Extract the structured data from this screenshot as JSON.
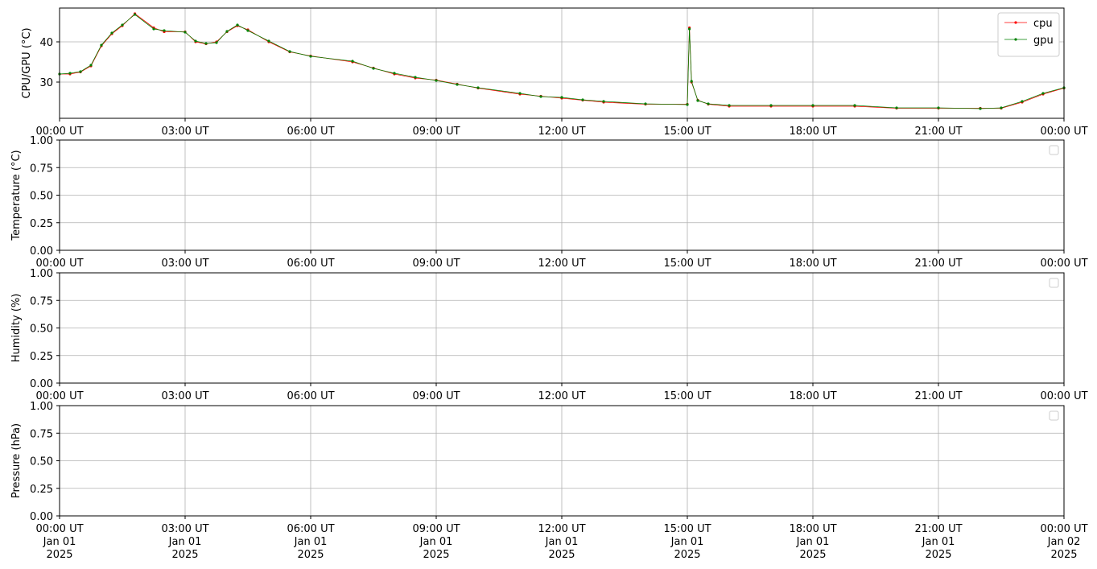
{
  "chart_data": [
    {
      "type": "line",
      "ylabel": "CPU/GPU (°C)",
      "xlim": [
        0,
        24
      ],
      "ylim": [
        21,
        48.4
      ],
      "grid": true,
      "legend": "upper right",
      "xticks": [
        {
          "value": 0,
          "label": "00:00 UT"
        },
        {
          "value": 3,
          "label": "03:00 UT"
        },
        {
          "value": 6,
          "label": "06:00 UT"
        },
        {
          "value": 9,
          "label": "09:00 UT"
        },
        {
          "value": 12,
          "label": "12:00 UT"
        },
        {
          "value": 15,
          "label": "15:00 UT"
        },
        {
          "value": 18,
          "label": "18:00 UT"
        },
        {
          "value": 21,
          "label": "21:00 UT"
        },
        {
          "value": 24,
          "label": "00:00 UT"
        }
      ],
      "yticks": [
        30,
        40
      ],
      "x": [
        0,
        0.25,
        0.5,
        0.75,
        1,
        1.25,
        1.5,
        1.8,
        2.25,
        2.5,
        3,
        3.25,
        3.5,
        3.75,
        4,
        4.25,
        4.5,
        5,
        5.5,
        6,
        7,
        7.5,
        8,
        8.5,
        9,
        9.5,
        10,
        11,
        11.5,
        12,
        12.5,
        13,
        14,
        15,
        15.05,
        15.1,
        15.25,
        15.5,
        16,
        17,
        18,
        19,
        20,
        21,
        22,
        22.5,
        23,
        23.5,
        24
      ],
      "series": [
        {
          "name": "cpu",
          "color": "#ff0000",
          "values": [
            32,
            32,
            32.5,
            34,
            39,
            42,
            44,
            47,
            43.5,
            42.5,
            42.5,
            40,
            39.5,
            40,
            42.5,
            44,
            43,
            40,
            37.5,
            36.5,
            35,
            33.5,
            32,
            31,
            30.5,
            29.5,
            28.5,
            27,
            26.5,
            26,
            25.5,
            25,
            24.5,
            24.5,
            43.5,
            30,
            25.5,
            24.5,
            24,
            24,
            24,
            24,
            23.5,
            23.5,
            23.5,
            23.5,
            25,
            27,
            28.5
          ]
        },
        {
          "name": "gpu",
          "color": "#008000",
          "values": [
            32,
            32.2,
            32.6,
            34.2,
            39.2,
            42.2,
            44.2,
            46.8,
            43.2,
            42.8,
            42.4,
            40.2,
            39.6,
            39.8,
            42.6,
            44.2,
            42.8,
            40.2,
            37.6,
            36.4,
            35.2,
            33.4,
            32.2,
            31.2,
            30.4,
            29.4,
            28.6,
            27.2,
            26.4,
            26.2,
            25.6,
            25.2,
            24.6,
            24.4,
            43.2,
            30.2,
            25.4,
            24.6,
            24.2,
            24.2,
            24.2,
            24.2,
            23.6,
            23.6,
            23.4,
            23.6,
            25.2,
            27.2,
            28.6
          ]
        }
      ]
    },
    {
      "type": "line",
      "ylabel": "Temperature (°C)",
      "xlim": [
        0,
        24
      ],
      "ylim": [
        0,
        1
      ],
      "grid": true,
      "xticks": [
        {
          "value": 0,
          "label": "00:00 UT"
        },
        {
          "value": 3,
          "label": "03:00 UT"
        },
        {
          "value": 6,
          "label": "06:00 UT"
        },
        {
          "value": 9,
          "label": "09:00 UT"
        },
        {
          "value": 12,
          "label": "12:00 UT"
        },
        {
          "value": 15,
          "label": "15:00 UT"
        },
        {
          "value": 18,
          "label": "18:00 UT"
        },
        {
          "value": 21,
          "label": "21:00 UT"
        },
        {
          "value": 24,
          "label": "00:00 UT"
        }
      ],
      "yticks": [
        {
          "value": 0,
          "label": "0.00"
        },
        {
          "value": 0.25,
          "label": "0.25"
        },
        {
          "value": 0.5,
          "label": "0.50"
        },
        {
          "value": 0.75,
          "label": "0.75"
        },
        {
          "value": 1,
          "label": "1.00"
        }
      ]
    },
    {
      "type": "line",
      "ylabel": "Humidity (%)",
      "xlim": [
        0,
        24
      ],
      "ylim": [
        0,
        1
      ],
      "grid": true,
      "xticks": [
        {
          "value": 0,
          "label": "00:00 UT"
        },
        {
          "value": 3,
          "label": "03:00 UT"
        },
        {
          "value": 6,
          "label": "06:00 UT"
        },
        {
          "value": 9,
          "label": "09:00 UT"
        },
        {
          "value": 12,
          "label": "12:00 UT"
        },
        {
          "value": 15,
          "label": "15:00 UT"
        },
        {
          "value": 18,
          "label": "18:00 UT"
        },
        {
          "value": 21,
          "label": "21:00 UT"
        },
        {
          "value": 24,
          "label": "00:00 UT"
        }
      ],
      "yticks": [
        {
          "value": 0,
          "label": "0.00"
        },
        {
          "value": 0.25,
          "label": "0.25"
        },
        {
          "value": 0.5,
          "label": "0.50"
        },
        {
          "value": 0.75,
          "label": "0.75"
        },
        {
          "value": 1,
          "label": "1.00"
        }
      ]
    },
    {
      "type": "line",
      "ylabel": "Pressure (hPa)",
      "xlim": [
        0,
        24
      ],
      "ylim": [
        0,
        1
      ],
      "grid": true,
      "xticks": [
        {
          "value": 0,
          "label": "00:00 UT\nJan 01\n2025"
        },
        {
          "value": 3,
          "label": "03:00 UT\nJan 01\n2025"
        },
        {
          "value": 6,
          "label": "06:00 UT\nJan 01\n2025"
        },
        {
          "value": 9,
          "label": "09:00 UT\nJan 01\n2025"
        },
        {
          "value": 12,
          "label": "12:00 UT\nJan 01\n2025"
        },
        {
          "value": 15,
          "label": "15:00 UT\nJan 01\n2025"
        },
        {
          "value": 18,
          "label": "18:00 UT\nJan 01\n2025"
        },
        {
          "value": 21,
          "label": "21:00 UT\nJan 01\n2025"
        },
        {
          "value": 24,
          "label": "00:00 UT\nJan 02\n2025"
        }
      ],
      "yticks": [
        {
          "value": 0,
          "label": "0.00"
        },
        {
          "value": 0.25,
          "label": "0.25"
        },
        {
          "value": 0.5,
          "label": "0.50"
        },
        {
          "value": 0.75,
          "label": "0.75"
        },
        {
          "value": 1,
          "label": "1.00"
        }
      ]
    }
  ]
}
